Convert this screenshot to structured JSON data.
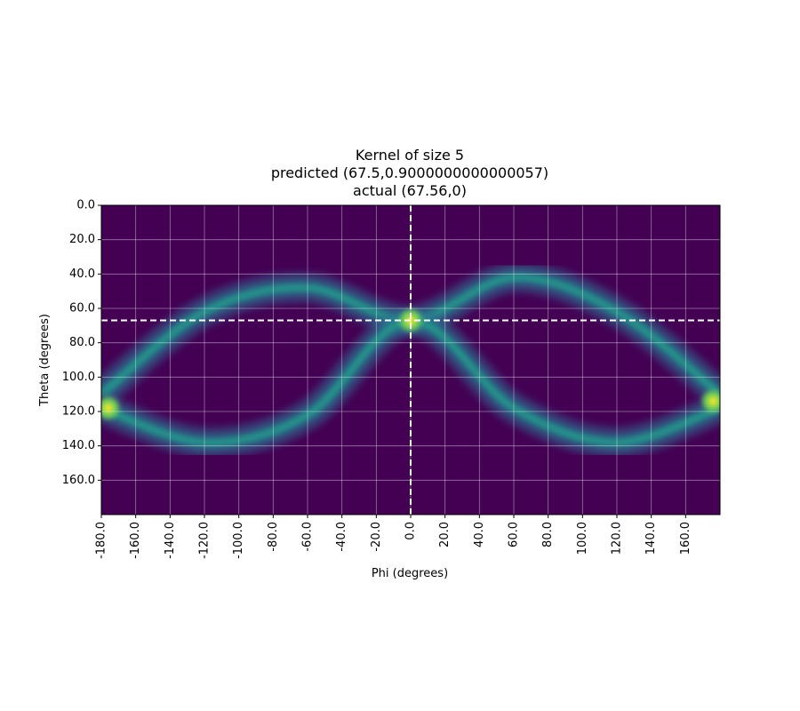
{
  "chart_data": {
    "type": "heatmap",
    "title": [
      "Kernel of size 5",
      "predicted (67.5,0.9000000000000057)",
      "actual (67.56,0)"
    ],
    "xlabel": "Phi (degrees)",
    "ylabel": "Theta (degrees)",
    "xlim": [
      -180,
      180
    ],
    "ylim": [
      180,
      0
    ],
    "x_ticks": [
      -180,
      -160,
      -140,
      -120,
      -100,
      -80,
      -60,
      -40,
      -20,
      0,
      20,
      40,
      60,
      80,
      100,
      120,
      140,
      160
    ],
    "x_tick_labels": [
      "-180.0",
      "-160.0",
      "-140.0",
      "-120.0",
      "-100.0",
      "-80.0",
      "-60.0",
      "-40.0",
      "-20.0",
      "0.0",
      "20.0",
      "40.0",
      "60.0",
      "80.0",
      "100.0",
      "120.0",
      "140.0",
      "160.0"
    ],
    "y_ticks": [
      0,
      20,
      40,
      60,
      80,
      100,
      120,
      140,
      160
    ],
    "y_tick_labels": [
      "0.0",
      "20.0",
      "40.0",
      "60.0",
      "80.0",
      "100.0",
      "120.0",
      "140.0",
      "160.0"
    ],
    "grid": true,
    "colormap": "viridis",
    "bands": [
      {
        "phi": [
          -180,
          -120,
          -60,
          0,
          60,
          120,
          180
        ],
        "theta": [
          110,
          62,
          48,
          67,
          42,
          62,
          110
        ]
      },
      {
        "phi": [
          -180,
          -120,
          -60,
          0,
          60,
          120,
          180
        ],
        "theta": [
          118,
          138,
          122,
          67,
          118,
          138,
          118
        ]
      }
    ],
    "peaks": [
      {
        "phi": 0,
        "theta": 67
      },
      {
        "phi": 176,
        "theta": 114
      },
      {
        "phi": -176,
        "theta": 118
      }
    ],
    "crosshair": {
      "phi": 0,
      "theta": 67,
      "color": "#ffffff",
      "style": "dashed"
    }
  }
}
